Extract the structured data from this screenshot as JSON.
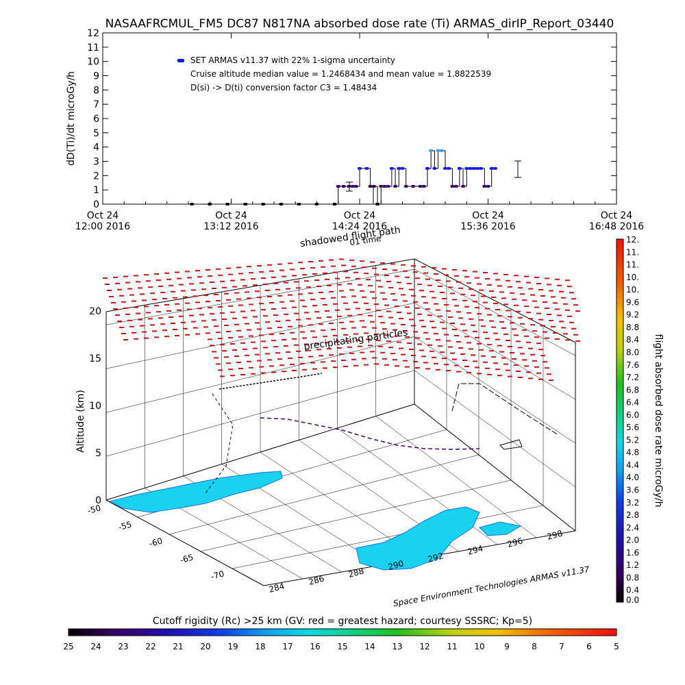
{
  "title": "NASAAFRCMUL_FM5 DC87 N817NA absorbed dose rate (Ti) ARMAS_dirIP_Report_03440",
  "colors": {
    "series": "#1a1ae6",
    "series_dark": "#3a0a6a",
    "series_light": "#3ca0e8",
    "shadow": "#d01010",
    "ground": "#19d2f0",
    "ground_dark": "#1a6fe6"
  },
  "chart_data": [
    {
      "type": "line",
      "ylabel": "dD(Ti)/dt microGy/h",
      "ylim": [
        0,
        12
      ],
      "yticks": [
        "0",
        "1",
        "2",
        "3",
        "4",
        "5",
        "6",
        "7",
        "8",
        "9",
        "10",
        "11",
        "12"
      ],
      "xlim_minutes": [
        720,
        1008
      ],
      "xticks": [
        {
          "day": "Oct 24",
          "time": "12:00 2016",
          "minutes": 720
        },
        {
          "day": "Oct 24",
          "time": "13:12 2016",
          "minutes": 792
        },
        {
          "day": "Oct 24",
          "time": "14:24 2016",
          "minutes": 864
        },
        {
          "day": "Oct 24",
          "time": "15:36 2016",
          "minutes": 936
        },
        {
          "day": "Oct 24",
          "time": "16:48 2016",
          "minutes": 1008
        }
      ],
      "legend": [
        "SET ARMAS v11.37 with 22% 1-sigma uncertainty",
        "Cruise altitude median value = 1.2468434 and mean value = 1.8822539",
        "D(si) -> D(ti) conversion factor C3 = 1.48434"
      ],
      "series": [
        {
          "x": [
            770,
            780,
            790,
            800,
            810,
            820,
            830,
            840,
            850,
            852,
            855,
            858,
            860,
            862,
            864,
            868,
            870,
            872,
            874,
            876,
            878,
            880,
            882,
            884,
            886,
            888,
            890,
            894,
            898,
            900,
            902,
            904,
            906,
            908,
            910,
            912,
            914,
            916,
            918,
            920,
            922,
            924,
            926,
            928,
            930,
            932,
            934,
            936,
            938,
            940
          ],
          "y": [
            0,
            0,
            0,
            0,
            0,
            0,
            0,
            0,
            0,
            1.25,
            1.25,
            1.25,
            1.25,
            1.25,
            2.5,
            2.5,
            1.25,
            1.25,
            0,
            1.25,
            1.25,
            1.25,
            2.5,
            1.25,
            2.5,
            2.5,
            1.25,
            1.25,
            1.25,
            1.25,
            2.5,
            3.75,
            2.5,
            3.75,
            3.75,
            2.5,
            2.5,
            1.25,
            1.25,
            2.5,
            1.25,
            2.5,
            2.5,
            2.5,
            2.5,
            2.5,
            1.25,
            1.25,
            2.5,
            2.5
          ]
        }
      ]
    },
    {
      "type": "scatter",
      "ylabel": "Altitude (km)",
      "zticks": [
        "0",
        "5",
        "10",
        "15",
        "20"
      ],
      "lat_ticks": [
        "-50",
        "-55",
        "-60",
        "-65",
        "-70"
      ],
      "lon_ticks": [
        "284",
        "286",
        "288",
        "290",
        "292",
        "294",
        "296",
        "298"
      ],
      "annotations": [
        "shadowed flight path",
        "01 time",
        "precipitating particles"
      ],
      "credit": "Space Environment Technologies ARMAS v11.37",
      "colorbar_title": "flight absorbed dose rate microGy/h",
      "colorbar_ticks": [
        "0.0",
        "0.4",
        "0.8",
        "1.2",
        "1.6",
        "2.0",
        "2.4",
        "2.8",
        "3.2",
        "3.6",
        "4.0",
        "4.4",
        "4.8",
        "5.2",
        "5.6",
        "6.0",
        "6.4",
        "6.8",
        "7.2",
        "7.6",
        "8.0",
        "8.4",
        "8.8",
        "9.2",
        "9.6",
        "10.",
        "10.",
        "11.",
        "11.",
        "12."
      ],
      "rigidity_title": "Cutoff rigidity (Rc) >25 km (GV: red = greatest hazard; courtesy SSSRC; Kp=5)",
      "rigidity_ticks": [
        "25",
        "24",
        "23",
        "22",
        "21",
        "20",
        "19",
        "18",
        "17",
        "16",
        "15",
        "14",
        "13",
        "12",
        "11",
        "10",
        "9",
        "8",
        "7",
        "6",
        "5"
      ]
    }
  ]
}
